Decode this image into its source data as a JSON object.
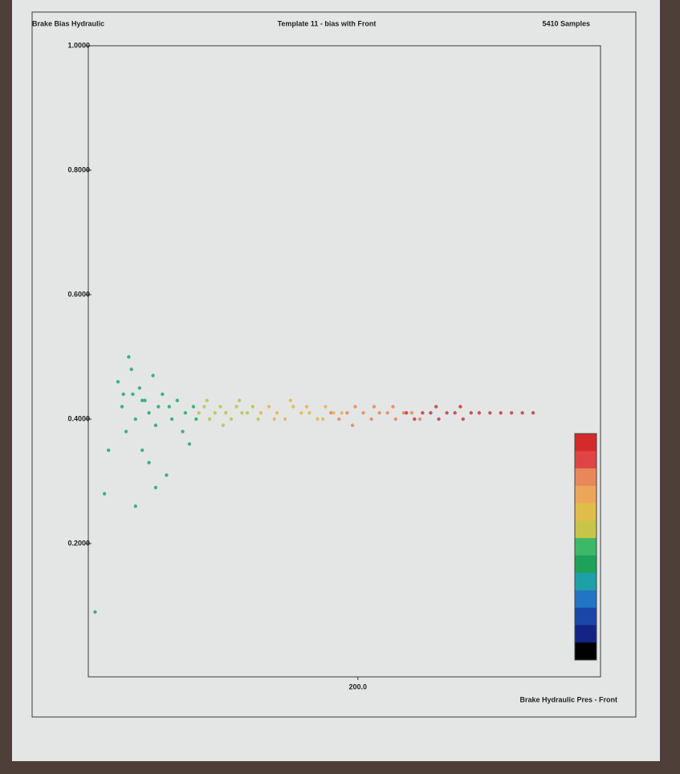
{
  "chart_data": {
    "type": "scatter",
    "y_label": "Brake Bias Hydraulic",
    "title": "Template 11 - bias with Front",
    "subtitle": "5410 Samples",
    "x_label": "Brake Hydraulic Pres - Front",
    "xlim": [
      0,
      380
    ],
    "ylim": [
      0,
      1
    ],
    "xticks": [
      {
        "value": 200,
        "label": "200.0"
      }
    ],
    "yticks": [
      {
        "value": 0.2,
        "label": "0.2000"
      },
      {
        "value": 0.4,
        "label": "0.4000"
      },
      {
        "value": 0.6,
        "label": "0.6000"
      },
      {
        "value": 0.8,
        "label": "0.8000"
      },
      {
        "value": 1,
        "label": "1.0000"
      }
    ],
    "colorbar": [
      "#d42a2a",
      "#e04545",
      "#e8885a",
      "#eca65a",
      "#e0bc4a",
      "#c8c44a",
      "#3cb868",
      "#1ea25a",
      "#1fa0a8",
      "#2274c4",
      "#1a46a8",
      "#122484",
      "#000000"
    ],
    "series": [
      {
        "color": "#22a86a",
        "x": [
          5,
          12,
          15,
          22,
          25,
          28,
          30,
          33,
          35,
          38,
          40,
          42,
          45,
          48,
          50,
          55,
          58,
          60,
          62,
          66,
          70,
          72,
          75,
          78,
          80,
          45,
          50,
          35,
          26,
          32,
          40,
          52
        ],
        "values": [
          0.09,
          0.28,
          0.35,
          0.46,
          0.42,
          0.38,
          0.5,
          0.44,
          0.4,
          0.45,
          0.35,
          0.43,
          0.41,
          0.47,
          0.39,
          0.44,
          0.31,
          0.42,
          0.4,
          0.43,
          0.38,
          0.41,
          0.36,
          0.42,
          0.4,
          0.33,
          0.29,
          0.26,
          0.44,
          0.48,
          0.43,
          0.42
        ]
      },
      {
        "color": "#b8c44a",
        "x": [
          82,
          86,
          90,
          94,
          98,
          102,
          106,
          110,
          114,
          118,
          122,
          126,
          88,
          100,
          112
        ],
        "values": [
          0.41,
          0.42,
          0.4,
          0.41,
          0.42,
          0.41,
          0.4,
          0.42,
          0.41,
          0.41,
          0.42,
          0.4,
          0.43,
          0.39,
          0.43
        ]
      },
      {
        "color": "#e8b450",
        "x": [
          128,
          134,
          140,
          146,
          152,
          158,
          164,
          170,
          176,
          182,
          188,
          138,
          150,
          162,
          174
        ],
        "values": [
          0.41,
          0.42,
          0.41,
          0.4,
          0.42,
          0.41,
          0.41,
          0.4,
          0.42,
          0.41,
          0.41,
          0.4,
          0.43,
          0.42,
          0.4
        ]
      },
      {
        "color": "#e8884a",
        "x": [
          180,
          186,
          192,
          198,
          204,
          210,
          216,
          222,
          228,
          234,
          240,
          246,
          196,
          212,
          226
        ],
        "values": [
          0.41,
          0.4,
          0.41,
          0.42,
          0.41,
          0.4,
          0.41,
          0.41,
          0.4,
          0.41,
          0.41,
          0.4,
          0.39,
          0.42,
          0.42
        ]
      },
      {
        "color": "#c83a3a",
        "x": [
          236,
          242,
          248,
          254,
          260,
          266,
          272,
          278,
          284,
          290,
          298,
          306,
          314,
          322,
          330,
          258,
          276
        ],
        "values": [
          0.41,
          0.4,
          0.41,
          0.41,
          0.4,
          0.41,
          0.41,
          0.4,
          0.41,
          0.41,
          0.41,
          0.41,
          0.41,
          0.41,
          0.41,
          0.42,
          0.42
        ]
      }
    ]
  }
}
